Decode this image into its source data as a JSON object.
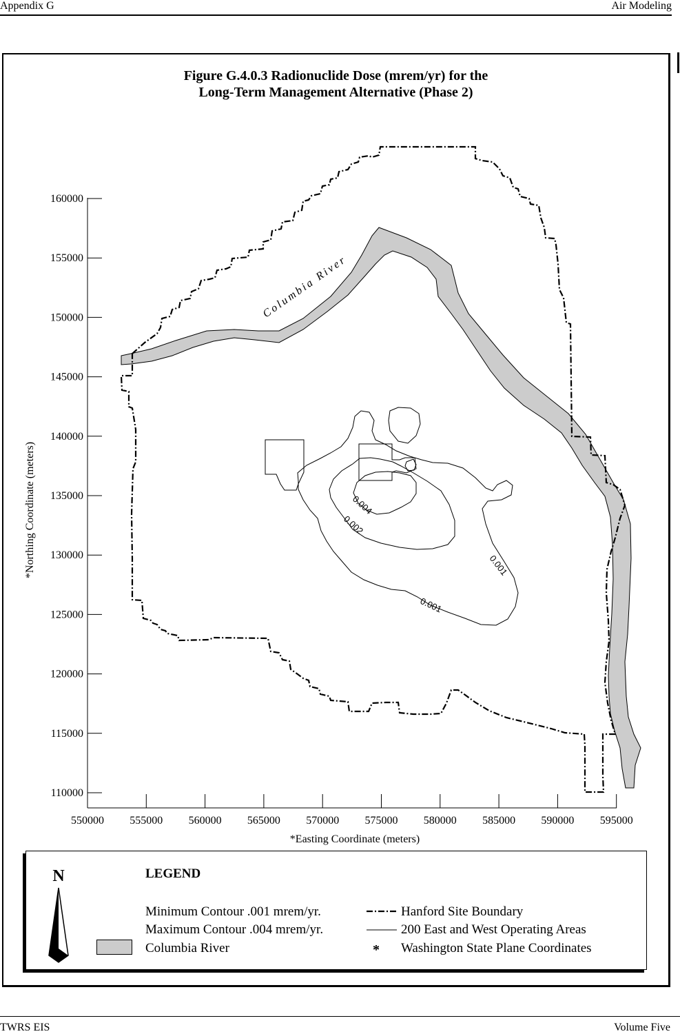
{
  "header": {
    "left": "Appendix G",
    "right": "Air Modeling"
  },
  "footer": {
    "left": "TWRS EIS",
    "right": "Volume Five"
  },
  "figure": {
    "title_line1": "Figure G.4.0.3  Radionuclide Dose (mrem/yr) for the",
    "title_line2": "Long-Term Management Alternative (Phase 2)"
  },
  "map": {
    "x_axis_label": "*Easting Coordinate (meters)",
    "y_axis_label": "*Northing Coordinate (meters)",
    "x_ticks": [
      "550000",
      "555000",
      "560000",
      "565000",
      "570000",
      "575000",
      "580000",
      "585000",
      "590000",
      "595000"
    ],
    "y_ticks": [
      "160000",
      "155000",
      "150000",
      "145000",
      "140000",
      "135000",
      "130000",
      "125000",
      "120000",
      "115000",
      "110000"
    ],
    "river_label": "Columbia River",
    "contour_labels": [
      "0.004",
      "0.002",
      "0.001",
      "0.001"
    ],
    "colors": {
      "river_fill": "#cccccc",
      "line": "#000000"
    }
  },
  "legend": {
    "north_letter": "N",
    "title": "LEGEND",
    "items": {
      "min_contour": "Minimum Contour .001 mrem/yr.",
      "max_contour": "Maximum Contour .004 mrem/yr.",
      "river": "Columbia River",
      "boundary": "Hanford Site Boundary",
      "operating_areas": "200 East and West Operating Areas",
      "coordinates": "Washington State Plane Coordinates",
      "asterisk": "*"
    }
  }
}
